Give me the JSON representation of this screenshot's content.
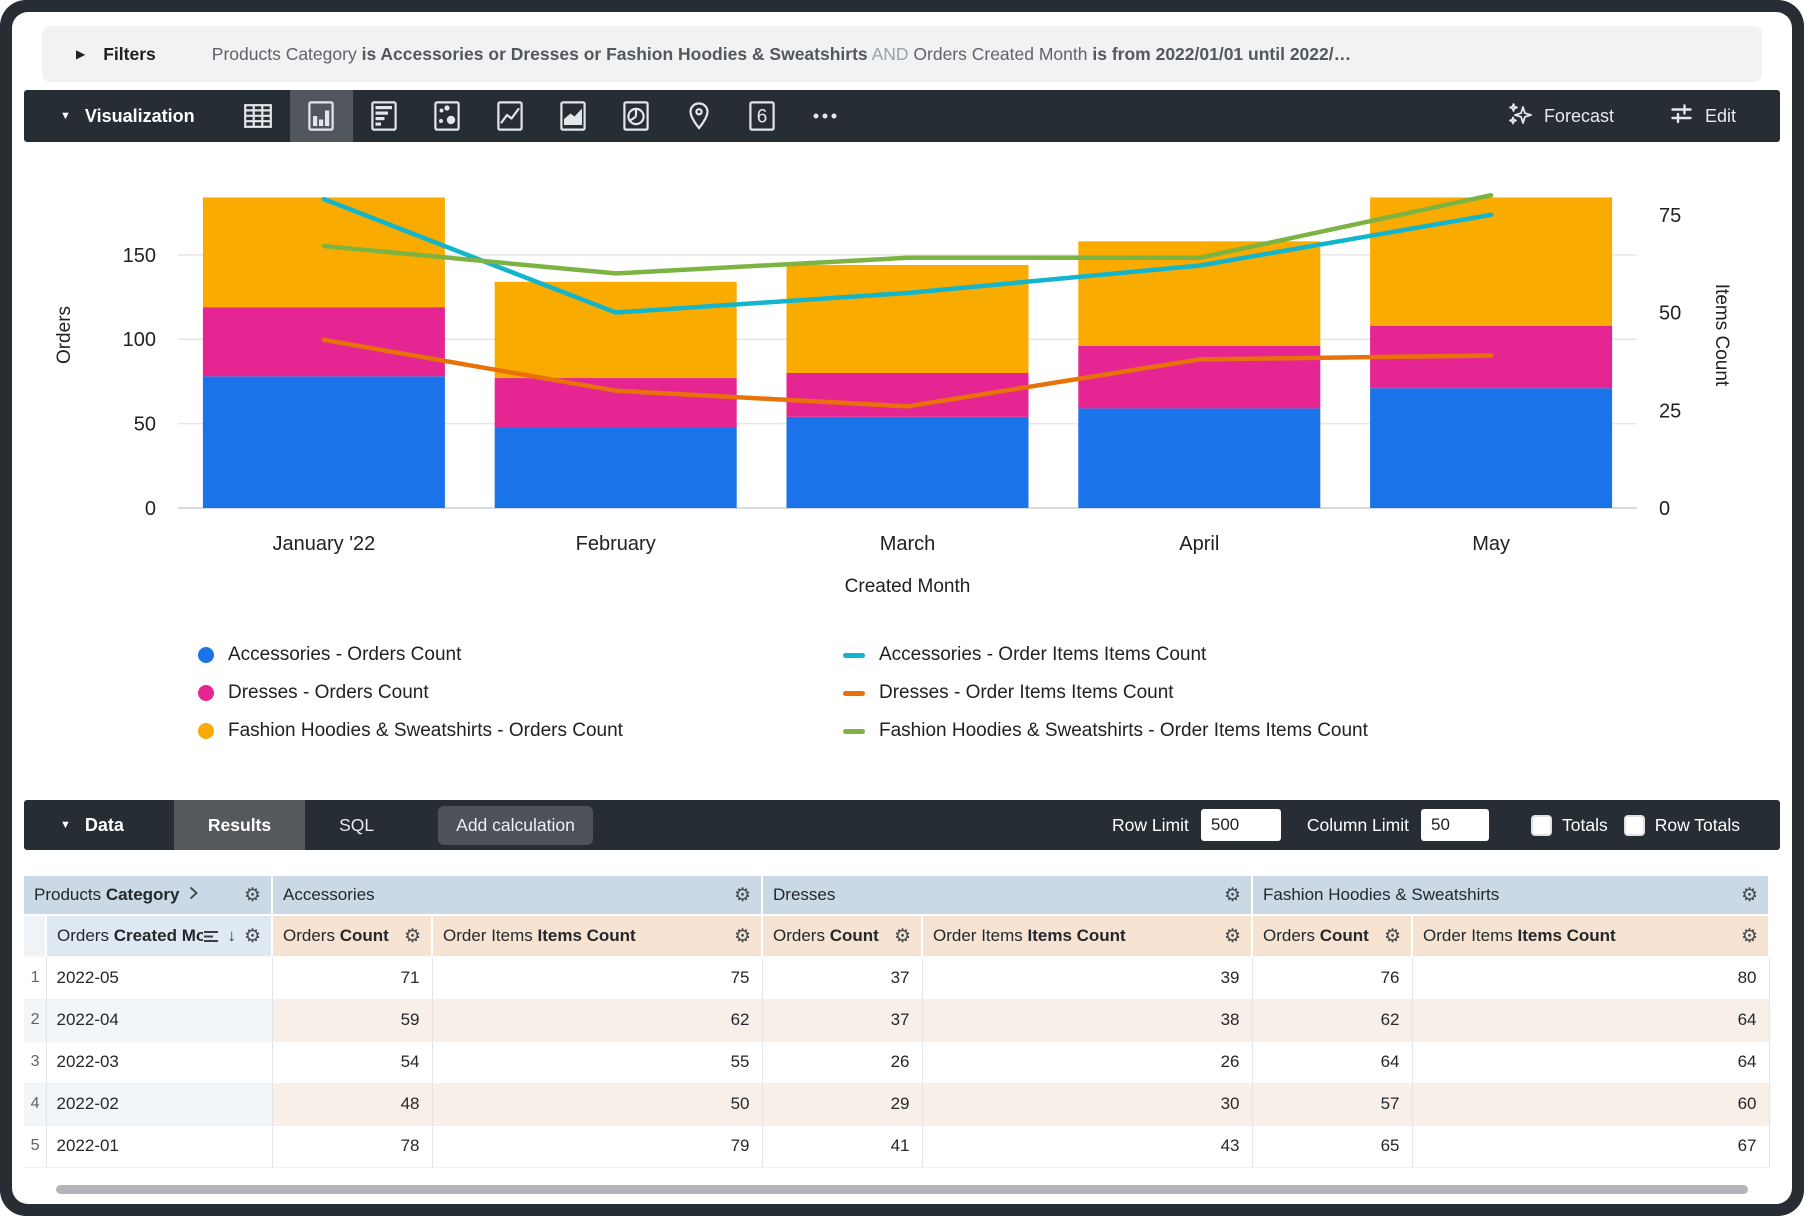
{
  "filters_bar": {
    "label": "Filters",
    "summary_parts": [
      {
        "text": "Products Category",
        "style": "normal"
      },
      {
        "text": "is Accessories or Dresses or Fashion Hoodies & Sweatshirts",
        "style": "strong"
      },
      {
        "text": "AND",
        "style": "muted"
      },
      {
        "text": "Orders Created Month",
        "style": "normal"
      },
      {
        "text": "is from 2022/01/01 until 2022/…",
        "style": "strong"
      }
    ]
  },
  "viz_toolbar": {
    "title": "Visualization",
    "icons": [
      {
        "name": "table-chart",
        "active": false
      },
      {
        "name": "column-chart",
        "active": true
      },
      {
        "name": "bar-chart",
        "active": false
      },
      {
        "name": "scatter-chart",
        "active": false
      },
      {
        "name": "line-chart",
        "active": false
      },
      {
        "name": "area-chart",
        "active": false
      },
      {
        "name": "pie-chart",
        "active": false
      },
      {
        "name": "map-chart",
        "active": false
      },
      {
        "name": "single-value",
        "active": false,
        "glyph": "6"
      },
      {
        "name": "more-options",
        "active": false
      }
    ],
    "forecast_label": "Forecast",
    "edit_label": "Edit"
  },
  "chart_data": {
    "type": "combo-stacked-bar-line",
    "categories": [
      "January '22",
      "February",
      "March",
      "April",
      "May"
    ],
    "x_axis_label": "Created Month",
    "left_axis": {
      "title": "Orders",
      "ticks": [
        0,
        50,
        100,
        150
      ],
      "max": 205
    },
    "right_axis": {
      "title": "Items Count",
      "ticks": [
        0,
        25,
        50,
        75
      ],
      "max": 88.5
    },
    "bar_series": [
      {
        "name": "Accessories - Orders Count",
        "color": "#1A73E8",
        "values": [
          78,
          48,
          54,
          59,
          71
        ]
      },
      {
        "name": "Dresses - Orders Count",
        "color": "#E52592",
        "values": [
          41,
          29,
          26,
          37,
          37
        ]
      },
      {
        "name": "Fashion Hoodies & Sweatshirts - Orders Count",
        "color": "#F9AB00",
        "values": [
          65,
          57,
          64,
          62,
          76
        ]
      }
    ],
    "line_series": [
      {
        "name": "Accessories - Order Items Items Count",
        "color": "#12B5CB",
        "values": [
          79,
          50,
          55,
          62,
          75
        ]
      },
      {
        "name": "Dresses - Order Items Items Count",
        "color": "#E8710A",
        "values": [
          43,
          30,
          26,
          38,
          39
        ]
      },
      {
        "name": "Fashion Hoodies & Sweatshirts - Order Items Items Count",
        "color": "#7CB342",
        "values": [
          67,
          60,
          64,
          64,
          80
        ]
      }
    ],
    "legend_position": "bottom",
    "grid": true
  },
  "data_bar": {
    "title": "Data",
    "tabs": [
      {
        "label": "Results",
        "active": true
      },
      {
        "label": "SQL",
        "active": false
      }
    ],
    "add_calculation_label": "Add calculation",
    "row_limit": {
      "label": "Row Limit",
      "value": "500"
    },
    "column_limit": {
      "label": "Column Limit",
      "value": "50"
    },
    "totals": {
      "label": "Totals",
      "checked": false
    },
    "row_totals": {
      "label": "Row Totals",
      "checked": false
    }
  },
  "results_table": {
    "dimension_group_header": {
      "pre": "Products ",
      "bold": "Category"
    },
    "dimension_header": {
      "pre": "Orders ",
      "bold": "Created Month"
    },
    "measure_groups": [
      {
        "label": "Accessories"
      },
      {
        "label": "Dresses"
      },
      {
        "label": "Fashion Hoodies & Sweatshirts"
      }
    ],
    "measure_headers": [
      {
        "pre": "Orders ",
        "bold": "Count"
      },
      {
        "pre": "Order Items ",
        "bold": "Items Count"
      }
    ],
    "rows": [
      {
        "index": "1",
        "month": "2022-05",
        "values": [
          "71",
          "75",
          "37",
          "39",
          "76",
          "80"
        ]
      },
      {
        "index": "2",
        "month": "2022-04",
        "values": [
          "59",
          "62",
          "37",
          "38",
          "62",
          "64"
        ]
      },
      {
        "index": "3",
        "month": "2022-03",
        "values": [
          "54",
          "55",
          "26",
          "26",
          "64",
          "64"
        ]
      },
      {
        "index": "4",
        "month": "2022-02",
        "values": [
          "48",
          "50",
          "29",
          "30",
          "57",
          "60"
        ]
      },
      {
        "index": "5",
        "month": "2022-01",
        "values": [
          "78",
          "79",
          "41",
          "43",
          "65",
          "67"
        ]
      }
    ]
  }
}
